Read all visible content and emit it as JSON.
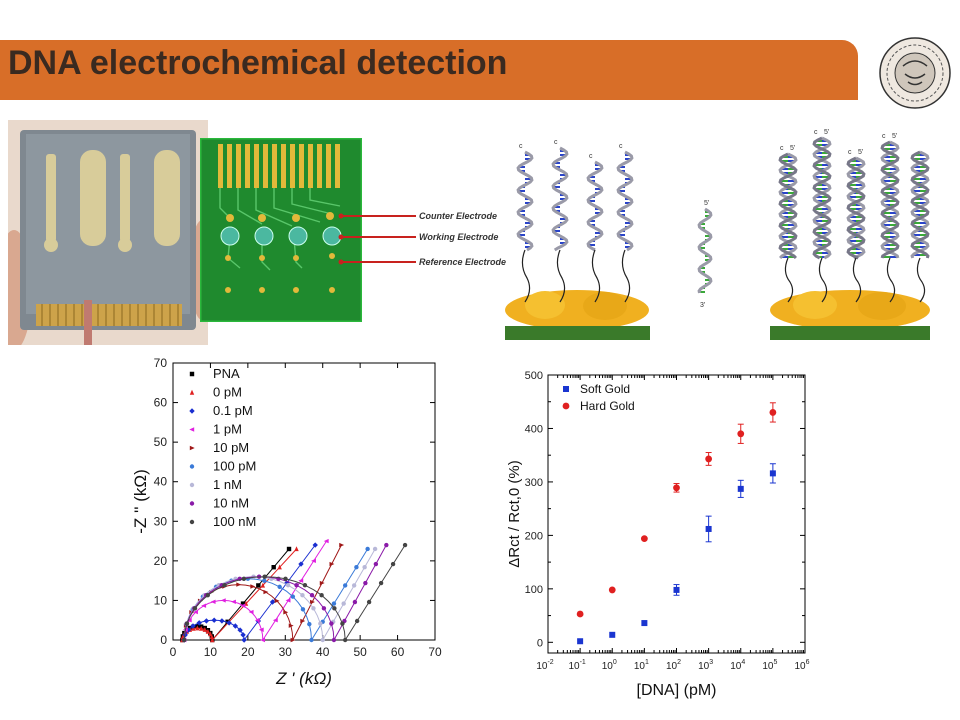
{
  "slide": {
    "title": "DNA electrochemical detection",
    "banner_color": "#d86e28"
  },
  "electrode_labels": [
    "Counter Electrode",
    "Working Electrode",
    "Reference Electrode"
  ],
  "dna_labels": {
    "five_prime": "5'",
    "three_prime": "3'",
    "c_terminus": "c"
  },
  "chart_data": [
    {
      "type": "scatter",
      "xlabel": "Z ' (kΩ)",
      "ylabel": "-Z '' (kΩ)",
      "xlim": [
        0,
        70
      ],
      "ylim": [
        0,
        70
      ],
      "xticks": [
        0,
        10,
        20,
        30,
        40,
        50,
        60,
        70
      ],
      "yticks": [
        0,
        10,
        20,
        30,
        40,
        50,
        60,
        70
      ],
      "legend_position": "top-left",
      "series": [
        {
          "name": "PNA",
          "color": "#000000",
          "marker": "square",
          "semicircle": [
            2.5,
            10.5,
            3.5
          ],
          "tail_end": [
            31,
            23
          ]
        },
        {
          "name": "0 pM",
          "color": "#e02020",
          "marker": "triangle",
          "semicircle": [
            2.5,
            10.5,
            3.0
          ],
          "tail_end": [
            33,
            23
          ]
        },
        {
          "name": "0.1 pM",
          "color": "#1a2fd0",
          "marker": "diamond",
          "semicircle": [
            3.0,
            19.0,
            5.0
          ],
          "tail_end": [
            38,
            24
          ]
        },
        {
          "name": "1 pM",
          "color": "#e020e0",
          "marker": "triangle-left",
          "semicircle": [
            3.0,
            24.0,
            10.0
          ],
          "tail_end": [
            41,
            25
          ]
        },
        {
          "name": "10 pM",
          "color": "#a01818",
          "marker": "triangle-right",
          "semicircle": [
            3.0,
            32.0,
            14.0
          ],
          "tail_end": [
            45,
            24
          ]
        },
        {
          "name": "100 pM",
          "color": "#3a7ad8",
          "marker": "hexagon",
          "semicircle": [
            3.0,
            37.0,
            15.5
          ],
          "tail_end": [
            52,
            23
          ]
        },
        {
          "name": "1 nM",
          "color": "#b8b8d8",
          "marker": "star",
          "semicircle": [
            3.0,
            40.0,
            16.0
          ],
          "tail_end": [
            54,
            23
          ]
        },
        {
          "name": "10 nM",
          "color": "#8a1aa8",
          "marker": "circle",
          "semicircle": [
            3.0,
            43.0,
            16.0
          ],
          "tail_end": [
            57,
            24
          ]
        },
        {
          "name": "100 nM",
          "color": "#444444",
          "marker": "circle",
          "semicircle": [
            3.0,
            46.0,
            16.0
          ],
          "tail_end": [
            62,
            24
          ]
        }
      ]
    },
    {
      "type": "scatter",
      "xlabel": "[DNA] (pM)",
      "ylabel": "ΔRct / Rct,0 (%)",
      "x_scale": "log",
      "xlim_exponents": [
        -2,
        6
      ],
      "xtick_base": "10",
      "xtick_exponents": [
        "-2",
        "-1",
        "0",
        "1",
        "2",
        "3",
        "4",
        "5",
        "6"
      ],
      "ylim": [
        -20,
        500
      ],
      "yticks": [
        0,
        100,
        200,
        300,
        400,
        500
      ],
      "legend_position": "top-left",
      "series": [
        {
          "name": "Soft Gold",
          "color": "#1a35d0",
          "marker": "square",
          "x": [
            0.1,
            1,
            10,
            100,
            1000,
            10000,
            100000
          ],
          "y": [
            2,
            14,
            36,
            98,
            212,
            287,
            316
          ],
          "err": [
            0,
            0,
            0,
            10,
            24,
            16,
            18
          ]
        },
        {
          "name": "Hard Gold",
          "color": "#e02020",
          "marker": "circle",
          "x": [
            0.1,
            1,
            10,
            100,
            1000,
            10000,
            100000
          ],
          "y": [
            53,
            98,
            194,
            289,
            343,
            390,
            430
          ],
          "err": [
            0,
            0,
            0,
            8,
            12,
            18,
            18
          ]
        }
      ]
    }
  ]
}
